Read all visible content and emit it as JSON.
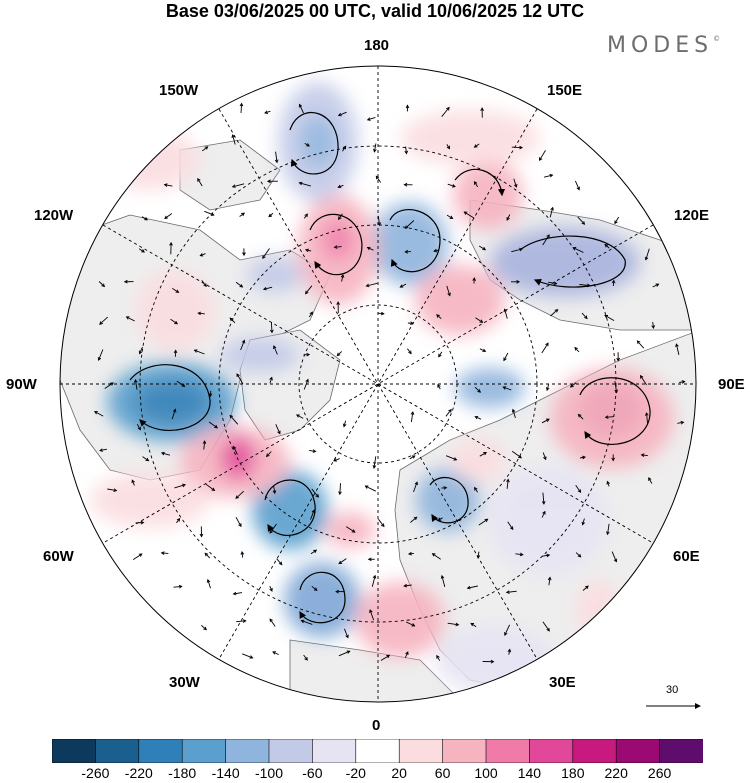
{
  "title": "Base 03/06/2025 00 UTC, valid 10/06/2025 12 UTC",
  "brand": "MODES",
  "brand_mark": "©",
  "longitude_labels": {
    "top": "180",
    "bottom": "0",
    "left": "90W",
    "right": "90E",
    "upper_left_1": "150W",
    "upper_left_2": "120W",
    "upper_right_1": "150E",
    "upper_right_2": "120E",
    "lower_left_1": "60W",
    "lower_left_2": "30W",
    "lower_right_1": "60E",
    "lower_right_2": "30E"
  },
  "reference_vector": {
    "label": "30"
  },
  "colorbar": {
    "colors": [
      "#0d3a5c",
      "#1b5f8f",
      "#2f7fb8",
      "#5a9fcd",
      "#8fb4dd",
      "#c3cae8",
      "#e6e4f3",
      "#ffffff",
      "#fbdde0",
      "#f6b3c0",
      "#f07aa8",
      "#e2489a",
      "#c7197e",
      "#9b0a73",
      "#5e0d6c"
    ],
    "ticks": [
      "-260",
      "-220",
      "-180",
      "-140",
      "-100",
      "-60",
      "-20",
      "20",
      "60",
      "100",
      "140",
      "180",
      "220",
      "260"
    ]
  },
  "colors": {
    "land": "#eeeeee",
    "coast": "#555555",
    "grid": "#000000"
  }
}
